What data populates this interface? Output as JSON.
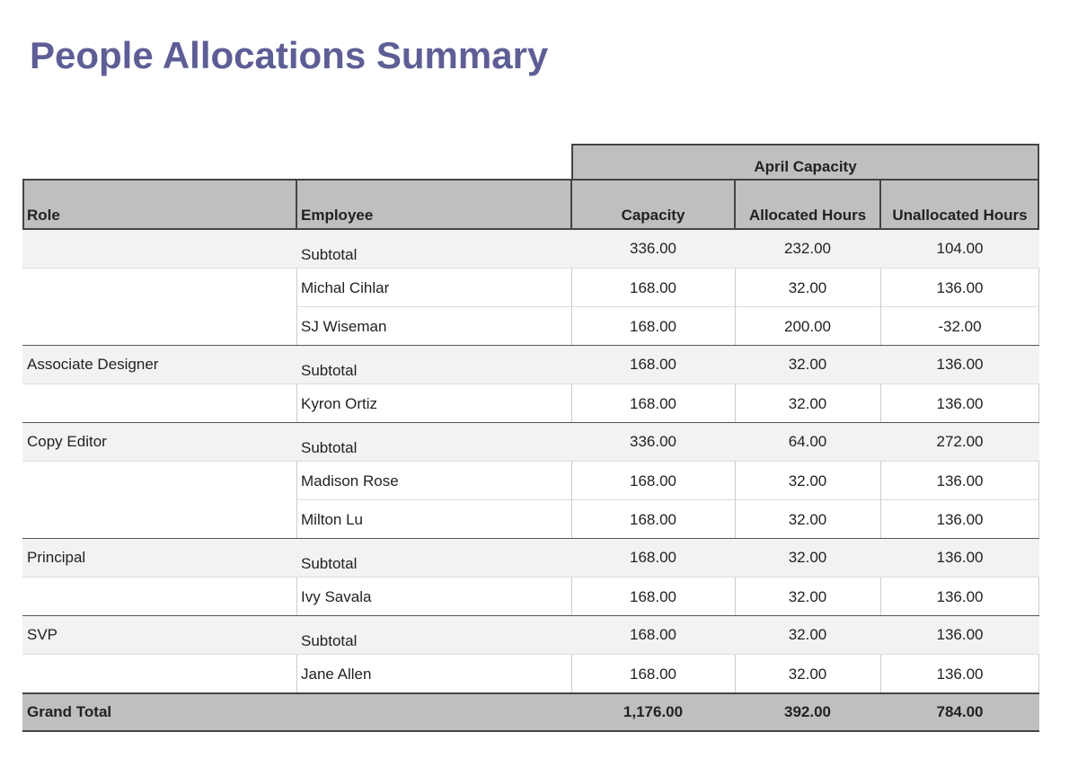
{
  "title": "People Allocations Summary",
  "table": {
    "group_header": "April Capacity",
    "columns": [
      "Role",
      "Employee",
      "Capacity",
      "Allocated Hours",
      "Unallocated Hours"
    ],
    "groups": [
      {
        "role": null,
        "subtotal": [
          "Subtotal",
          "336.00",
          "232.00",
          "104.00"
        ],
        "members": [
          [
            "Michal Cihlar",
            "168.00",
            "32.00",
            "136.00"
          ],
          [
            "SJ Wiseman",
            "168.00",
            "200.00",
            "-32.00"
          ]
        ]
      },
      {
        "role": "Associate Designer",
        "subtotal": [
          "Subtotal",
          "168.00",
          "32.00",
          "136.00"
        ],
        "members": [
          [
            "Kyron Ortiz",
            "168.00",
            "32.00",
            "136.00"
          ]
        ]
      },
      {
        "role": "Copy Editor",
        "subtotal": [
          "Subtotal",
          "336.00",
          "64.00",
          "272.00"
        ],
        "members": [
          [
            "Madison Rose",
            "168.00",
            "32.00",
            "136.00"
          ],
          [
            "Milton Lu",
            "168.00",
            "32.00",
            "136.00"
          ]
        ]
      },
      {
        "role": "Principal",
        "subtotal": [
          "Subtotal",
          "168.00",
          "32.00",
          "136.00"
        ],
        "members": [
          [
            "Ivy Savala",
            "168.00",
            "32.00",
            "136.00"
          ]
        ]
      },
      {
        "role": "SVP",
        "subtotal": [
          "Subtotal",
          "168.00",
          "32.00",
          "136.00"
        ],
        "members": [
          [
            "Jane Allen",
            "168.00",
            "32.00",
            "136.00"
          ]
        ]
      }
    ],
    "grand_total": [
      "Grand Total",
      "1,176.00",
      "392.00",
      "784.00"
    ]
  }
}
